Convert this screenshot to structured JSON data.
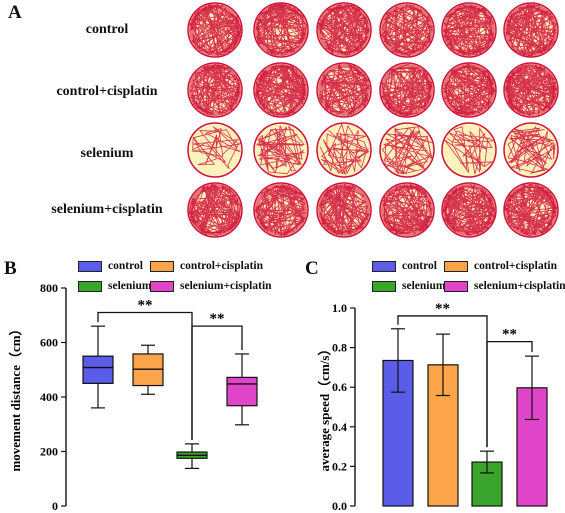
{
  "panel_a": {
    "letter": "A",
    "rows": [
      {
        "label": "control",
        "density": 0.85
      },
      {
        "label": "control+cisplatin",
        "density": 0.95
      },
      {
        "label": "selenium",
        "density": 0.25
      },
      {
        "label": "selenium+cisplatin",
        "density": 0.9
      }
    ],
    "colors": {
      "track": "#d0103a",
      "arena_fill": "#fbf2bc"
    },
    "tracks": [
      [
        0.95,
        0.85,
        0.9,
        0.75,
        0.9,
        0.85
      ],
      [
        0.8,
        1.0,
        0.75,
        0.85,
        0.95,
        1.0
      ],
      [
        0.1,
        0.3,
        0.25,
        0.3,
        0.15,
        0.35
      ],
      [
        0.95,
        0.85,
        0.8,
        0.9,
        1.0,
        0.9
      ]
    ]
  },
  "panel_b": {
    "letter": "B"
  },
  "panel_c": {
    "letter": "C"
  },
  "legend": {
    "control": "control",
    "control_cisplatin": "control+cisplatin",
    "selenium": "selenium",
    "selenium_cisplatin": "selenium+cisplatin"
  },
  "colors": {
    "control": "#5b5ce8",
    "control_cisplatin": "#fca44a",
    "selenium": "#3aa42c",
    "selenium_cisplatin": "#e044c8",
    "axis": "#111111"
  },
  "chart_data": [
    {
      "type": "box",
      "panel": "B",
      "ylabel": "movement distance（cm）",
      "ylim": [
        0,
        800
      ],
      "yticks": [
        "0",
        "200",
        "400",
        "600",
        "800"
      ],
      "grid": false,
      "legend_position": "top",
      "series": [
        {
          "name": "control",
          "whisker_low": 360,
          "q1": 450,
          "median": 508,
          "q3": 550,
          "whisker_high": 660
        },
        {
          "name": "control+cisplatin",
          "whisker_low": 410,
          "q1": 442,
          "median": 502,
          "q3": 558,
          "whisker_high": 590
        },
        {
          "name": "selenium",
          "whisker_low": 138,
          "q1": 175,
          "median": 186,
          "q3": 198,
          "whisker_high": 228
        },
        {
          "name": "selenium+cisplatin",
          "whisker_low": 298,
          "q1": 368,
          "median": 448,
          "q3": 472,
          "whisker_high": 558
        }
      ],
      "significance": [
        {
          "between": [
            "control",
            "selenium"
          ],
          "label": "**"
        },
        {
          "between": [
            "selenium",
            "selenium+cisplatin"
          ],
          "label": "**"
        }
      ]
    },
    {
      "type": "bar",
      "panel": "C",
      "ylabel": "average speed（cm/s）",
      "ylim": [
        0,
        1.0
      ],
      "yticks": [
        "0.0",
        "0.2",
        "0.4",
        "0.6",
        "0.8",
        "1.0"
      ],
      "grid": false,
      "legend_position": "top",
      "categories": [
        "control",
        "control+cisplatin",
        "selenium",
        "selenium+cisplatin"
      ],
      "values": [
        0.735,
        0.713,
        0.222,
        0.597
      ],
      "errors": [
        0.16,
        0.155,
        0.055,
        0.16
      ],
      "significance": [
        {
          "between": [
            "control",
            "selenium"
          ],
          "label": "**"
        },
        {
          "between": [
            "selenium",
            "selenium+cisplatin"
          ],
          "label": "**"
        }
      ]
    }
  ]
}
